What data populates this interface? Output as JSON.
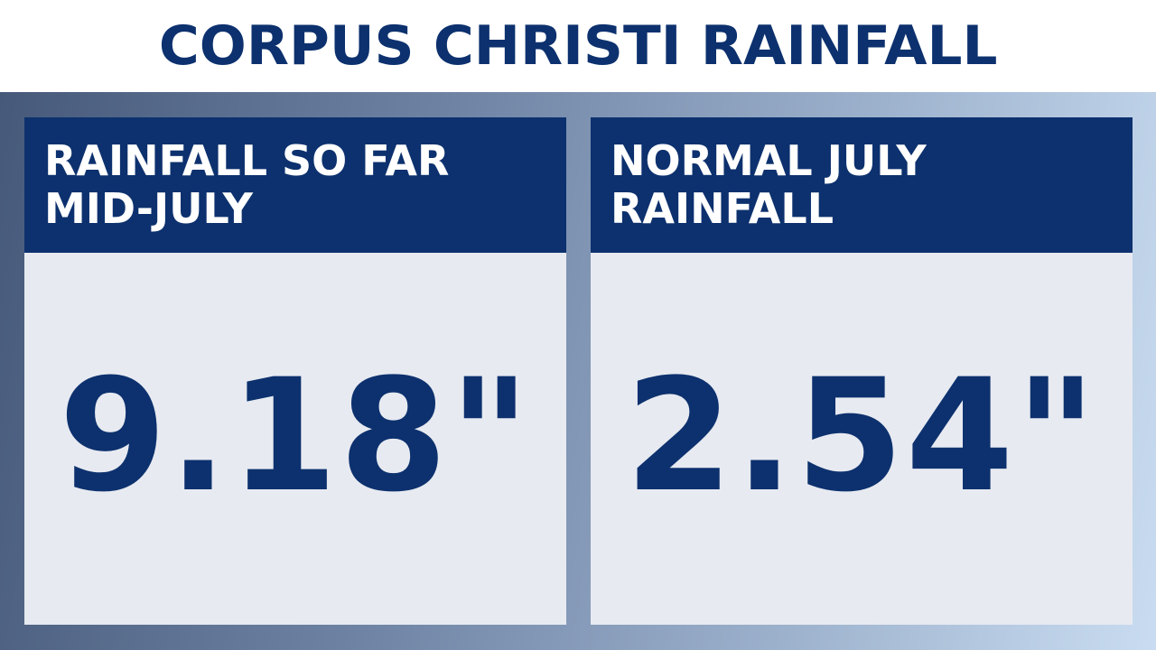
{
  "title": "CORPUS CHRISTI RAINFALL",
  "cards": [
    {
      "label_lines": [
        "RAINFALL SO FAR",
        "MID-JULY"
      ],
      "value": "9.18\""
    },
    {
      "label_lines": [
        "NORMAL JULY",
        "RAINFALL"
      ],
      "value": "2.54\""
    }
  ],
  "colors": {
    "navy": "#0d316e",
    "card_background": "#e7eaf1",
    "header_background": "#ffffff"
  }
}
